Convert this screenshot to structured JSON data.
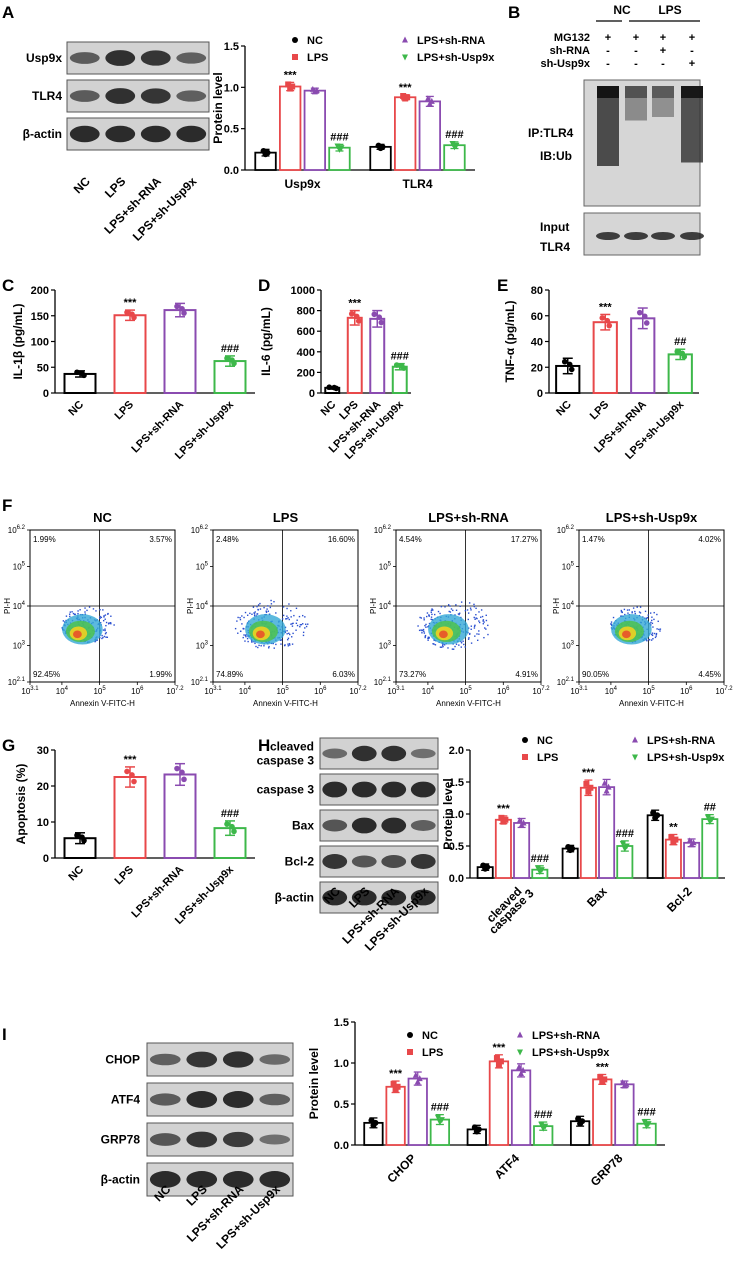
{
  "colors": {
    "NC": "#000000",
    "LPS": "#e8484a",
    "sh_RNA": "#8a4bb0",
    "sh_Usp9x": "#3db84a",
    "blot_bg": "#d2d2d2",
    "band": "#222222"
  },
  "groups": [
    "NC",
    "LPS",
    "LPS+sh-RNA",
    "LPS+sh-Usp9x"
  ],
  "legend": {
    "nc": "NC",
    "lps": "LPS",
    "shrna": "LPS+sh-RNA",
    "shusp": "LPS+sh-Usp9x"
  },
  "panelA": {
    "label": "A",
    "blot_labels": [
      "Usp9x",
      "TLR4",
      "β-actin"
    ],
    "band_intensity": [
      [
        0.55,
        0.95,
        0.9,
        0.5
      ],
      [
        0.55,
        0.95,
        0.9,
        0.5
      ],
      [
        1,
        1,
        1,
        1
      ]
    ],
    "ylabel": "Protein level",
    "yticks": [
      "0.0",
      "0.5",
      "1.0",
      "1.5"
    ],
    "chart_data": {
      "type": "bar",
      "categories": [
        "Usp9x",
        "TLR4"
      ],
      "ylim": [
        0,
        1.5
      ],
      "series": [
        {
          "name": "NC",
          "values": [
            0.21,
            0.28
          ]
        },
        {
          "name": "LPS",
          "values": [
            1.01,
            0.88
          ]
        },
        {
          "name": "LPS+sh-RNA",
          "values": [
            0.96,
            0.83
          ]
        },
        {
          "name": "LPS+sh-Usp9x",
          "values": [
            0.27,
            0.3
          ]
        }
      ],
      "errors": [
        [
          0.04,
          0.03
        ],
        [
          0.05,
          0.03
        ],
        [
          0.03,
          0.06
        ],
        [
          0.04,
          0.04
        ]
      ],
      "annotations": [
        [
          "",
          "***",
          "",
          "###"
        ],
        [
          "",
          "***",
          "",
          "###"
        ]
      ]
    }
  },
  "panelB": {
    "label": "B",
    "groups_top": [
      "NC",
      "LPS"
    ],
    "rows": [
      {
        "name": "MG132",
        "marks": [
          "+",
          "+",
          "+",
          "+"
        ]
      },
      {
        "name": "sh-RNA",
        "marks": [
          "-",
          "-",
          "+",
          "-"
        ]
      },
      {
        "name": "sh-Usp9x",
        "marks": [
          "-",
          "-",
          "-",
          "+"
        ]
      }
    ],
    "ip": "IP:TLR4",
    "ib": "IB:Ub",
    "input": "Input",
    "input_protein": "TLR4"
  },
  "panelC": {
    "label": "C",
    "ylabel": "IL-1β (pg/mL)",
    "yticks": [
      "0",
      "50",
      "100",
      "150",
      "200"
    ],
    "chart_data": {
      "type": "bar",
      "categories": [
        "NC",
        "LPS",
        "LPS+sh-RNA",
        "LPS+sh-Usp9x"
      ],
      "values": [
        37,
        151,
        161,
        62
      ],
      "errors": [
        6,
        10,
        13,
        10
      ],
      "ylim": [
        0,
        200
      ],
      "annotations": [
        "",
        "***",
        "",
        "###"
      ]
    }
  },
  "panelD": {
    "label": "D",
    "ylabel": "IL-6 (pg/mL)",
    "yticks": [
      "0",
      "200",
      "400",
      "600",
      "800",
      "1000"
    ],
    "chart_data": {
      "type": "bar",
      "categories": [
        "NC",
        "LPS",
        "LPS+sh-RNA",
        "LPS+sh-Usp9x"
      ],
      "values": [
        50,
        730,
        720,
        255
      ],
      "errors": [
        12,
        70,
        80,
        30
      ],
      "ylim": [
        0,
        1000
      ],
      "annotations": [
        "",
        "***",
        "",
        "###"
      ]
    }
  },
  "panelE": {
    "label": "E",
    "ylabel": "TNF-α (pg/mL)",
    "yticks": [
      "0",
      "20",
      "40",
      "60",
      "80"
    ],
    "chart_data": {
      "type": "bar",
      "categories": [
        "NC",
        "LPS",
        "LPS+sh-RNA",
        "LPS+sh-Usp9x"
      ],
      "values": [
        21,
        55,
        58,
        30
      ],
      "errors": [
        6,
        6,
        8,
        4
      ],
      "ylim": [
        0,
        80
      ],
      "annotations": [
        "",
        "***",
        "",
        "##"
      ]
    }
  },
  "panelF": {
    "label": "F",
    "xlabel": "Annexin V-FITC-H",
    "ylabel": "PI-H",
    "xticks": [
      "3.1",
      "4",
      "5",
      "6",
      "7.2"
    ],
    "yticks": [
      "2.1",
      "3",
      "4",
      "5",
      "6.2"
    ],
    "tick_base": "10",
    "plots": [
      {
        "title": "NC",
        "ul": "1.99%",
        "ur": "3.57%",
        "ll": "92.45%",
        "lr": "1.99%"
      },
      {
        "title": "LPS",
        "ul": "2.48%",
        "ur": "16.60%",
        "ll": "74.89%",
        "lr": "6.03%"
      },
      {
        "title": "LPS+sh-RNA",
        "ul": "4.54%",
        "ur": "17.27%",
        "ll": "73.27%",
        "lr": "4.91%"
      },
      {
        "title": "LPS+sh-Usp9x",
        "ul": "1.47%",
        "ur": "4.02%",
        "ll": "90.05%",
        "lr": "4.45%"
      }
    ]
  },
  "panelG": {
    "label": "G",
    "ylabel": "Apoptosis (%)",
    "yticks": [
      "0",
      "10",
      "20",
      "30"
    ],
    "chart_data": {
      "type": "bar",
      "categories": [
        "NC",
        "LPS",
        "LPS+sh-RNA",
        "LPS+sh-Usp9x"
      ],
      "values": [
        5.5,
        22.5,
        23.2,
        8.3
      ],
      "errors": [
        1.5,
        2.8,
        3,
        2
      ],
      "ylim": [
        0,
        30
      ],
      "annotations": [
        "",
        "***",
        "",
        "###"
      ]
    }
  },
  "panelH": {
    "label": "H",
    "blot_labels": [
      "cleaved\ncaspase 3",
      "caspase 3",
      "Bax",
      "Bcl-2",
      "β-actin"
    ],
    "band_intensity": [
      [
        0.4,
        0.95,
        0.95,
        0.35
      ],
      [
        1,
        1,
        1,
        1
      ],
      [
        0.6,
        1,
        1,
        0.5
      ],
      [
        0.9,
        0.6,
        0.7,
        0.9
      ],
      [
        1,
        1,
        1,
        1
      ]
    ],
    "ylabel": "Protein level",
    "yticks": [
      "0.0",
      "0.5",
      "1.0",
      "1.5",
      "2.0"
    ],
    "chart_data": {
      "type": "bar",
      "categories": [
        "cleaved\ncaspase 3",
        "Bax",
        "Bcl-2"
      ],
      "ylim": [
        0,
        2
      ],
      "series": [
        {
          "name": "NC",
          "values": [
            0.17,
            0.46,
            0.98
          ]
        },
        {
          "name": "LPS",
          "values": [
            0.91,
            1.41,
            0.6
          ]
        },
        {
          "name": "LPS+sh-RNA",
          "values": [
            0.86,
            1.42,
            0.55
          ]
        },
        {
          "name": "LPS+sh-Usp9x",
          "values": [
            0.13,
            0.5,
            0.92
          ]
        }
      ],
      "errors": [
        [
          0.05,
          0.05,
          0.08
        ],
        [
          0.06,
          0.12,
          0.08
        ],
        [
          0.07,
          0.12,
          0.06
        ],
        [
          0.06,
          0.08,
          0.07
        ]
      ],
      "annotations": [
        [
          "",
          "",
          ""
        ],
        [
          "***",
          "***",
          "**"
        ],
        [
          "",
          "",
          ""
        ],
        [
          "###",
          "###",
          "##"
        ]
      ]
    }
  },
  "panelI": {
    "label": "I",
    "blot_labels": [
      "CHOP",
      "ATF4",
      "GRP78",
      "β-actin"
    ],
    "band_intensity": [
      [
        0.5,
        0.9,
        0.95,
        0.4
      ],
      [
        0.55,
        1,
        1,
        0.5
      ],
      [
        0.6,
        0.9,
        0.85,
        0.35
      ],
      [
        1,
        1,
        1,
        1
      ]
    ],
    "ylabel": "Protein level",
    "yticks": [
      "0.0",
      "0.5",
      "1.0",
      "1.5"
    ],
    "chart_data": {
      "type": "bar",
      "categories": [
        "CHOP",
        "ATF4",
        "GRP78"
      ],
      "ylim": [
        0,
        1.5
      ],
      "series": [
        {
          "name": "NC",
          "values": [
            0.27,
            0.19,
            0.29
          ]
        },
        {
          "name": "LPS",
          "values": [
            0.71,
            1.02,
            0.8
          ]
        },
        {
          "name": "LPS+sh-RNA",
          "values": [
            0.81,
            0.91,
            0.74
          ]
        },
        {
          "name": "LPS+sh-Usp9x",
          "values": [
            0.31,
            0.23,
            0.26
          ]
        }
      ],
      "errors": [
        [
          0.06,
          0.05,
          0.06
        ],
        [
          0.07,
          0.08,
          0.06
        ],
        [
          0.08,
          0.08,
          0.04
        ],
        [
          0.06,
          0.05,
          0.05
        ]
      ],
      "annotations": [
        [
          "",
          "",
          ""
        ],
        [
          "***",
          "***",
          "***"
        ],
        [
          "",
          "",
          ""
        ],
        [
          "###",
          "###",
          "###"
        ]
      ]
    }
  }
}
